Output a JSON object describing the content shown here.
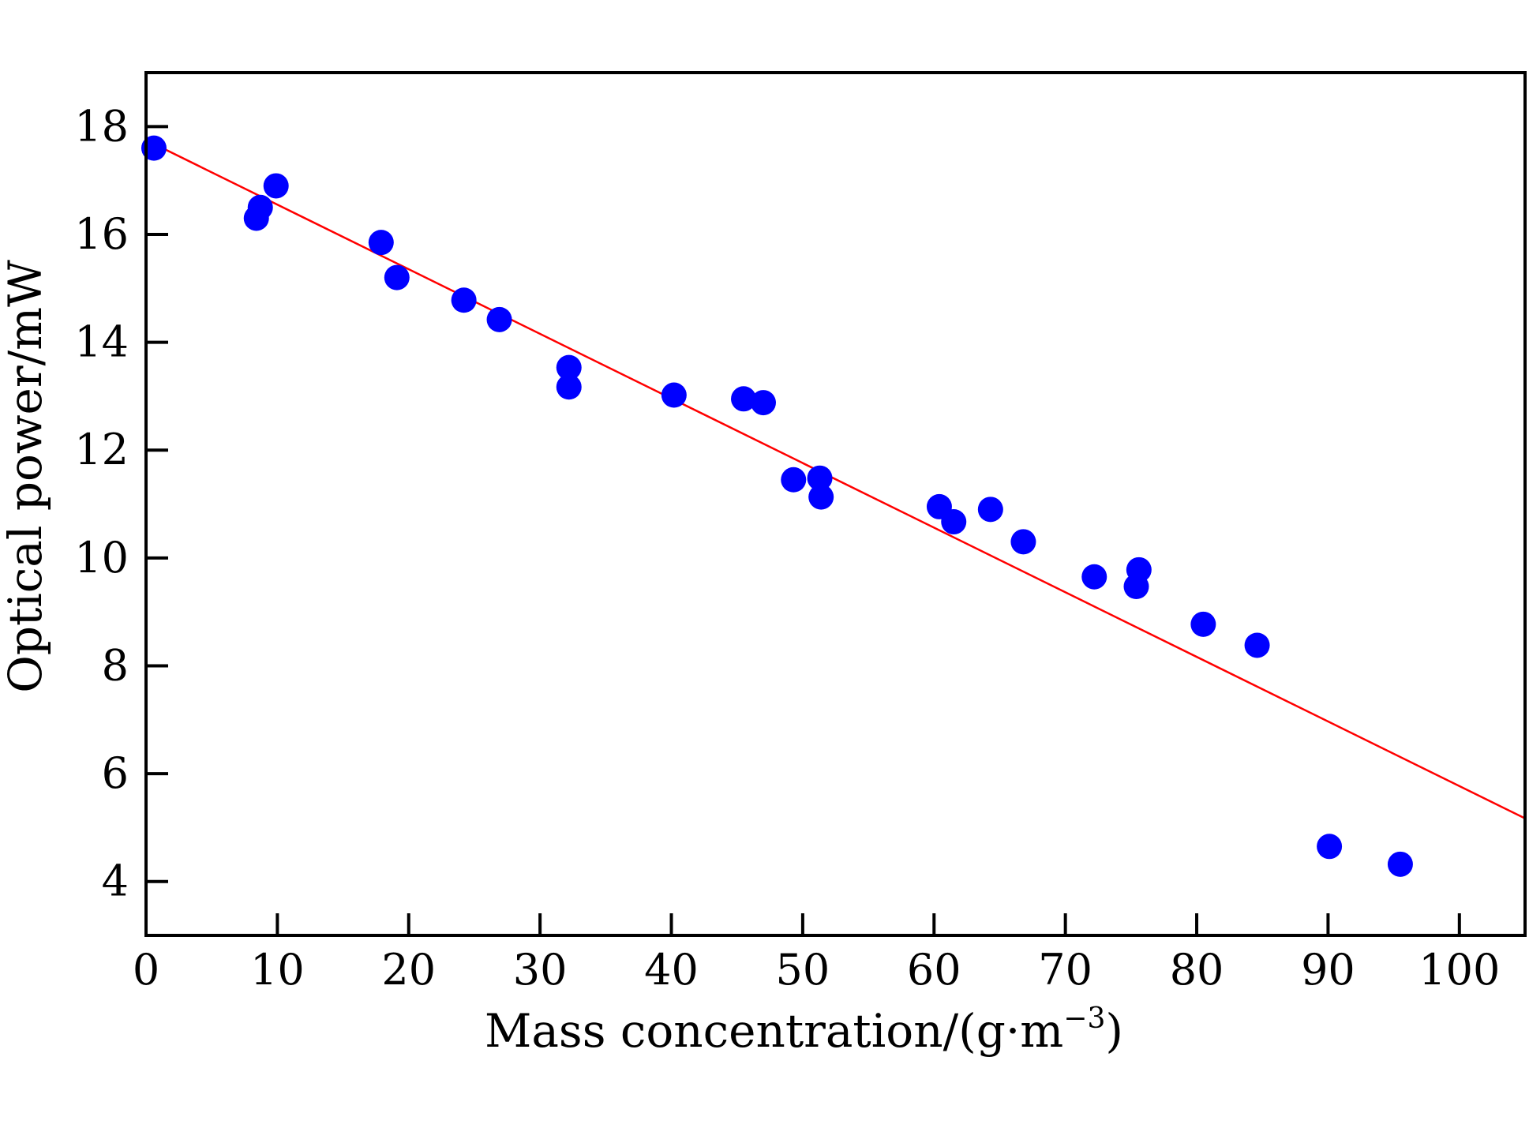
{
  "chart_data": {
    "type": "scatter",
    "title": "",
    "xlabel": "Mass concentration/(g·m",
    "xlabel_sup": "−3",
    "xlabel_suffix": ")",
    "ylabel": "Optical power/mW",
    "xlim": [
      0,
      105
    ],
    "ylim": [
      3,
      19
    ],
    "xticks": [
      0,
      10,
      20,
      30,
      40,
      50,
      60,
      70,
      80,
      90,
      100
    ],
    "yticks": [
      4,
      6,
      8,
      10,
      12,
      14,
      16,
      18
    ],
    "grid": false,
    "legend": "none",
    "colors": {
      "points": "#0000ff",
      "fit": "#ff0000",
      "axes": "#000000"
    },
    "series": [
      {
        "kind": "scatter",
        "x": [
          0.6,
          8.4,
          8.7,
          9.9,
          17.9,
          19.1,
          24.2,
          26.9,
          32.2,
          32.2,
          40.2,
          45.5,
          47.0,
          49.3,
          51.3,
          51.4,
          60.4,
          61.5,
          64.3,
          66.8,
          72.2,
          75.4,
          75.6,
          80.5,
          84.6,
          90.1,
          95.5
        ],
        "y": [
          17.6,
          16.3,
          16.5,
          16.9,
          15.85,
          15.2,
          14.78,
          14.42,
          13.53,
          13.17,
          13.02,
          12.95,
          12.88,
          11.45,
          11.48,
          11.13,
          10.95,
          10.67,
          10.9,
          10.3,
          9.65,
          9.47,
          9.78,
          8.77,
          8.38,
          4.65,
          4.32
        ]
      },
      {
        "kind": "line",
        "x": [
          0,
          105
        ],
        "y": [
          17.75,
          5.17
        ]
      }
    ]
  }
}
